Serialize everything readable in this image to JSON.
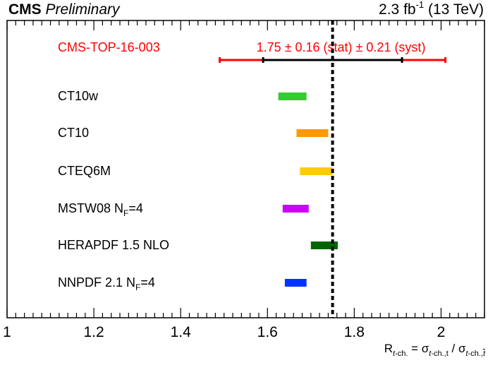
{
  "header": {
    "experiment": "CMS",
    "status": "Preliminary",
    "lumi_value": "2.3 fb",
    "lumi_exp": "-1",
    "energy": "(13 TeV)"
  },
  "xaxis_label": {
    "R": "R",
    "R_sub_t": "t",
    "R_sub_rest": "-ch.",
    "equals": " = σ",
    "num_sub_t": "t",
    "num_sub_rest": "-ch.,t",
    "slash": " / σ",
    "den_sub_t": "t",
    "den_sub_mid": "-ch.,",
    "den_sub_tbar": "t"
  },
  "chart_data": {
    "type": "forest",
    "xlim": [
      1.0,
      2.1
    ],
    "xticks": [
      1.0,
      1.2,
      1.4,
      1.6,
      1.8,
      2.0
    ],
    "xtick_labels": [
      "1",
      "1.2",
      "1.4",
      "1.6",
      "1.8",
      "2"
    ],
    "measurement": {
      "label": "CMS-TOP-16-003",
      "value_text": "1.75 ± 0.16 (stat) ± 0.21 (syst)",
      "central": 1.75,
      "stat_low": 1.59,
      "stat_high": 1.91,
      "total_low": 1.49,
      "total_high": 2.01,
      "color": "#ff0000"
    },
    "predictions": [
      {
        "name": "CT10w",
        "sub": "",
        "suffix": "",
        "low": 1.625,
        "high": 1.69,
        "color": "#33cc33"
      },
      {
        "name": "CT10",
        "sub": "",
        "suffix": "",
        "low": 1.667,
        "high": 1.74,
        "color": "#ff9900"
      },
      {
        "name": "CTEQ6M",
        "sub": "",
        "suffix": "",
        "low": 1.675,
        "high": 1.75,
        "color": "#ffcc00"
      },
      {
        "name": "MSTW08 N",
        "sub": "F",
        "suffix": "=4",
        "low": 1.635,
        "high": 1.695,
        "color": "#cc00ff"
      },
      {
        "name": "HERAPDF 1.5 NLO",
        "sub": "",
        "suffix": "",
        "low": 1.7,
        "high": 1.762,
        "color": "#006600"
      },
      {
        "name": "NNPDF 2.1 N",
        "sub": "F",
        "suffix": "=4",
        "low": 1.64,
        "high": 1.69,
        "color": "#0033ff"
      }
    ],
    "grid": false
  }
}
